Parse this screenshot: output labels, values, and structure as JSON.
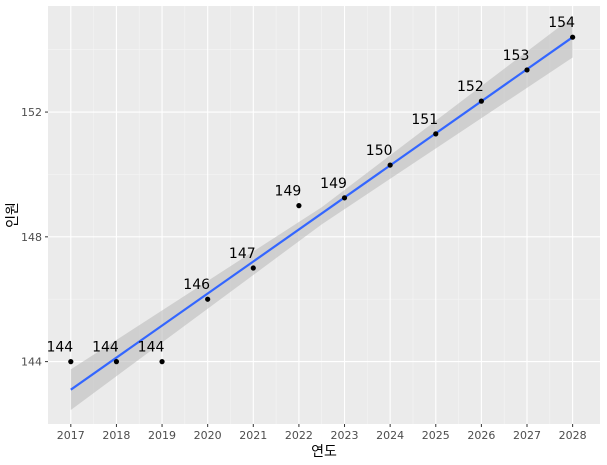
{
  "chart_data": {
    "type": "scatter",
    "xlabel": "연도",
    "ylabel": "인원",
    "x_ticks": [
      "2017",
      "2018",
      "2019",
      "2020",
      "2021",
      "2022",
      "2023",
      "2024",
      "2025",
      "2026",
      "2027",
      "2028"
    ],
    "y_ticks": [
      "144",
      "148",
      "152"
    ],
    "xlim": [
      2016.5,
      2028.6
    ],
    "ylim": [
      142.0,
      155.4
    ],
    "points": [
      {
        "x": 2017,
        "y": 144,
        "label": "144"
      },
      {
        "x": 2018,
        "y": 144,
        "label": "144"
      },
      {
        "x": 2019,
        "y": 144,
        "label": "144"
      },
      {
        "x": 2020,
        "y": 146,
        "label": "146"
      },
      {
        "x": 2021,
        "y": 147,
        "label": "147"
      },
      {
        "x": 2022,
        "y": 149,
        "label": "149"
      },
      {
        "x": 2023,
        "y": 149.25,
        "label": "149"
      },
      {
        "x": 2024,
        "y": 150.3,
        "label": "150"
      },
      {
        "x": 2025,
        "y": 151.3,
        "label": "151"
      },
      {
        "x": 2026,
        "y": 152.35,
        "label": "152"
      },
      {
        "x": 2027,
        "y": 153.35,
        "label": "153"
      },
      {
        "x": 2028,
        "y": 154.4,
        "label": "154"
      }
    ],
    "trend_line": {
      "x": [
        2017,
        2028
      ],
      "y": [
        143.1,
        154.4
      ]
    },
    "confidence_band": {
      "x": [
        2017,
        2022.5,
        2028
      ],
      "lower": [
        142.45,
        148.4,
        153.75
      ],
      "upper": [
        143.75,
        148.95,
        155.05
      ]
    },
    "grid": true,
    "legend": "none",
    "colors": {
      "panel_background": "#ebebeb",
      "grid_major": "#ffffff",
      "points": "#000000",
      "trend_line": "#3366ff",
      "confidence_band": "#bdbdbd"
    }
  }
}
